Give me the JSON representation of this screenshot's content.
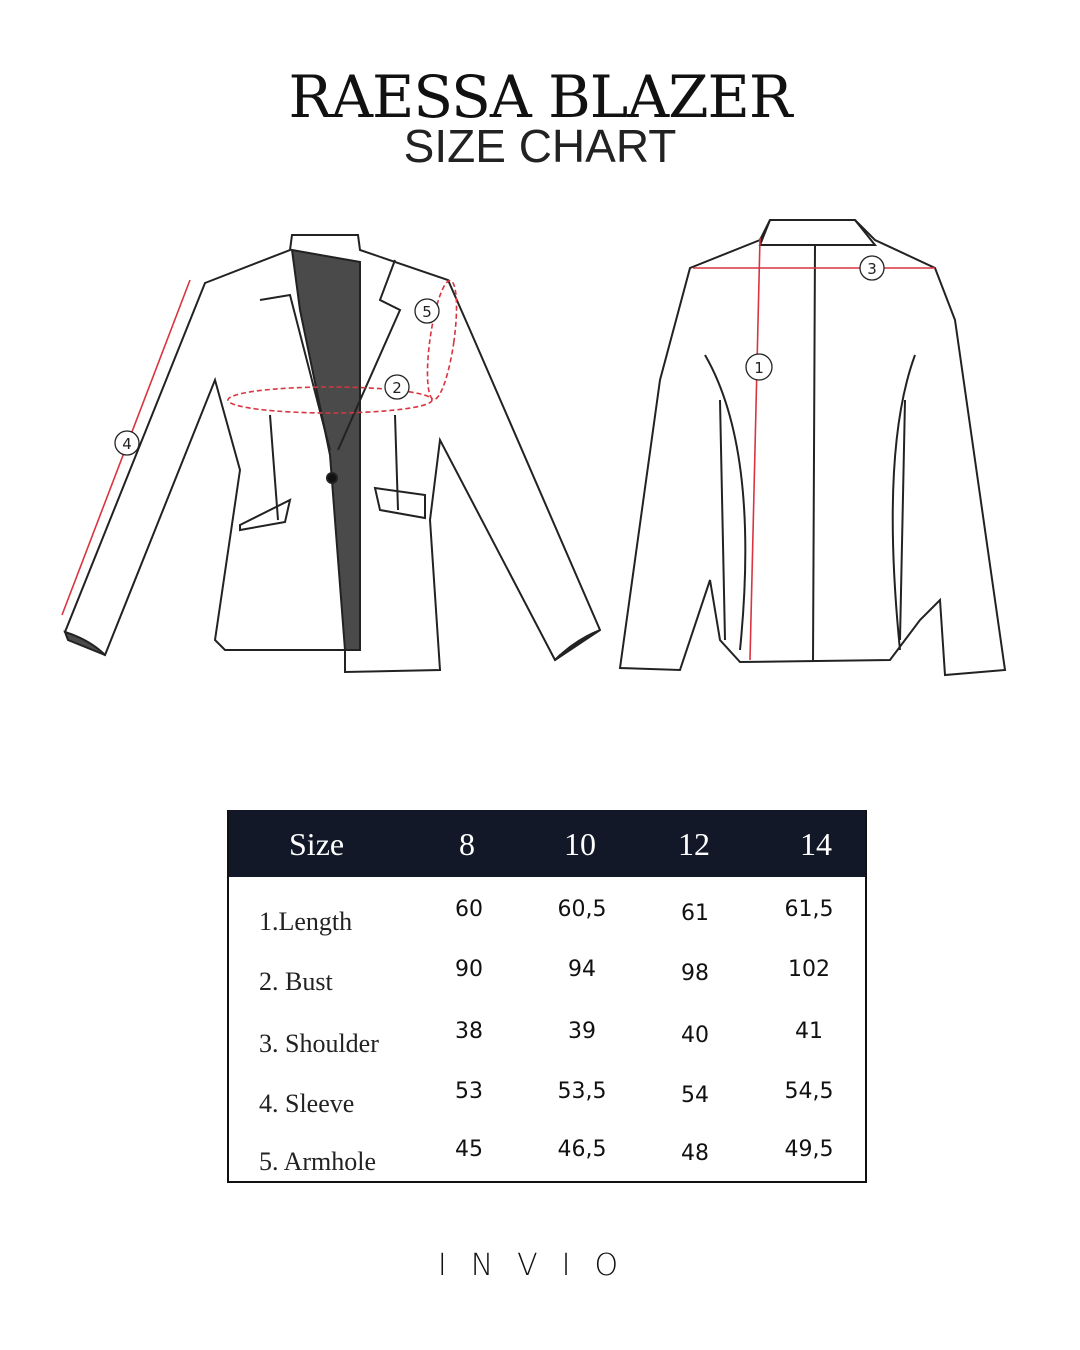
{
  "title": "RAESSA BLAZER",
  "subtitle": "SIZE CHART",
  "diagram": {
    "markers": [
      "1",
      "2",
      "3",
      "4",
      "5"
    ],
    "measure_color": "#d9343f",
    "lining_color": "#4a4a4a"
  },
  "table": {
    "header": [
      "Size",
      "8",
      "10",
      "12",
      "14"
    ],
    "header_bg": "#121828",
    "rows": [
      {
        "label": "1.Length",
        "values": [
          "60",
          "60,5",
          "61",
          "61,5"
        ]
      },
      {
        "label": "2. Bust",
        "values": [
          "90",
          "94",
          "98",
          "102"
        ]
      },
      {
        "label": "3. Shoulder",
        "values": [
          "38",
          "39",
          "40",
          "41"
        ]
      },
      {
        "label": "4. Sleeve",
        "values": [
          "53",
          "53,5",
          "54",
          "54,5"
        ]
      },
      {
        "label": "5. Armhole",
        "values": [
          "45",
          "46,5",
          "48",
          "49,5"
        ]
      }
    ]
  },
  "brand": "INVIO"
}
